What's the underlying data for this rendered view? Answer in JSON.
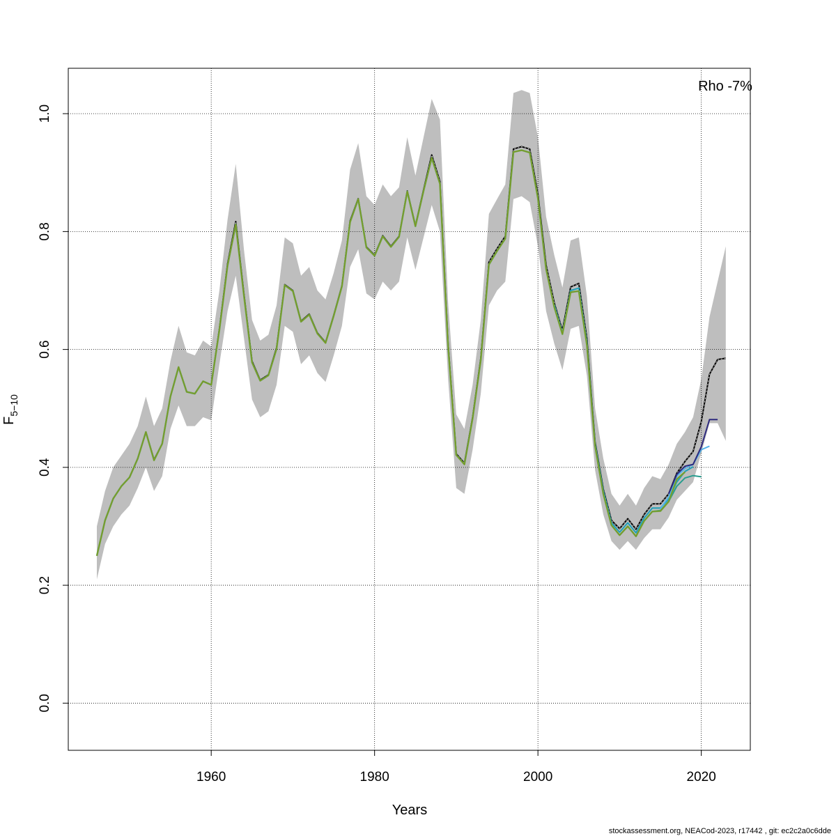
{
  "chart_data": {
    "type": "line",
    "xlabel": "Years",
    "ylabel_main": "F",
    "ylabel_sub": "5−10",
    "xlim": [
      1942.5,
      2026
    ],
    "ylim": [
      -0.08,
      1.077
    ],
    "x_ticks": [
      1960,
      1980,
      2000,
      2020
    ],
    "x_tick_labels": [
      "1960",
      "1980",
      "2000",
      "2020"
    ],
    "y_ticks": [
      0.0,
      0.2,
      0.4,
      0.6,
      0.8,
      1.0
    ],
    "y_tick_labels": [
      "0.0",
      "0.2",
      "0.4",
      "0.6",
      "0.8",
      "1.0"
    ],
    "grid": true,
    "annotation": "Rho -7%",
    "footer": "stockassessment.org, NEACod-2023, r17442 , git: ec2c2a0c6dde",
    "colors": {
      "band": "#bebebe",
      "main": "#000000",
      "peel_green": "#6aa84f",
      "peel_olive": "#8b8b00",
      "peel_teal": "#2a9d8f",
      "peel_lightblue": "#56b4e9",
      "peel_navy": "#2e2a7e",
      "peel_cyan": "#1fa0b8"
    },
    "band": {
      "x": [
        1946,
        1947,
        1948,
        1949,
        1950,
        1951,
        1952,
        1953,
        1954,
        1955,
        1956,
        1957,
        1958,
        1959,
        1960,
        1961,
        1962,
        1963,
        1964,
        1965,
        1966,
        1967,
        1968,
        1969,
        1970,
        1971,
        1972,
        1973,
        1974,
        1975,
        1976,
        1977,
        1978,
        1979,
        1980,
        1981,
        1982,
        1983,
        1984,
        1985,
        1986,
        1987,
        1988,
        1989,
        1990,
        1991,
        1992,
        1993,
        1994,
        1995,
        1996,
        1997,
        1998,
        1999,
        2000,
        2001,
        2002,
        2003,
        2004,
        2005,
        2006,
        2007,
        2008,
        2009,
        2010,
        2011,
        2012,
        2013,
        2014,
        2015,
        2016,
        2017,
        2018,
        2019,
        2020,
        2021,
        2022,
        2023
      ],
      "upper": [
        0.3,
        0.36,
        0.4,
        0.42,
        0.44,
        0.47,
        0.52,
        0.47,
        0.5,
        0.58,
        0.64,
        0.595,
        0.59,
        0.615,
        0.605,
        0.7,
        0.82,
        0.915,
        0.77,
        0.65,
        0.615,
        0.625,
        0.675,
        0.79,
        0.78,
        0.725,
        0.74,
        0.7,
        0.685,
        0.73,
        0.785,
        0.905,
        0.95,
        0.86,
        0.845,
        0.88,
        0.86,
        0.875,
        0.96,
        0.895,
        0.96,
        1.025,
        0.99,
        0.68,
        0.49,
        0.465,
        0.54,
        0.65,
        0.83,
        0.855,
        0.88,
        1.035,
        1.04,
        1.035,
        0.96,
        0.825,
        0.76,
        0.705,
        0.785,
        0.79,
        0.69,
        0.5,
        0.415,
        0.355,
        0.335,
        0.355,
        0.335,
        0.365,
        0.385,
        0.38,
        0.405,
        0.44,
        0.46,
        0.485,
        0.55,
        0.655,
        0.715,
        0.775
      ],
      "lower": [
        0.21,
        0.27,
        0.3,
        0.32,
        0.335,
        0.365,
        0.4,
        0.36,
        0.385,
        0.465,
        0.505,
        0.47,
        0.47,
        0.485,
        0.48,
        0.575,
        0.665,
        0.725,
        0.62,
        0.515,
        0.485,
        0.495,
        0.54,
        0.64,
        0.63,
        0.575,
        0.59,
        0.56,
        0.545,
        0.59,
        0.64,
        0.74,
        0.77,
        0.695,
        0.685,
        0.715,
        0.7,
        0.715,
        0.79,
        0.735,
        0.79,
        0.845,
        0.8,
        0.55,
        0.365,
        0.355,
        0.43,
        0.525,
        0.675,
        0.7,
        0.715,
        0.855,
        0.86,
        0.85,
        0.775,
        0.665,
        0.61,
        0.565,
        0.635,
        0.64,
        0.555,
        0.395,
        0.32,
        0.275,
        0.26,
        0.275,
        0.26,
        0.28,
        0.295,
        0.295,
        0.315,
        0.345,
        0.36,
        0.375,
        0.425,
        0.475,
        0.475,
        0.445
      ]
    },
    "series": [
      {
        "color": "#000000",
        "dashed": true,
        "width": 2,
        "x": [
          1946,
          1947,
          1948,
          1949,
          1950,
          1951,
          1952,
          1953,
          1954,
          1955,
          1956,
          1957,
          1958,
          1959,
          1960,
          1961,
          1962,
          1963,
          1964,
          1965,
          1966,
          1967,
          1968,
          1969,
          1970,
          1971,
          1972,
          1973,
          1974,
          1975,
          1976,
          1977,
          1978,
          1979,
          1980,
          1981,
          1982,
          1983,
          1984,
          1985,
          1986,
          1987,
          1988,
          1989,
          1990,
          1991,
          1992,
          1993,
          1994,
          1995,
          1996,
          1997,
          1998,
          1999,
          2000,
          2001,
          2002,
          2003,
          2004,
          2005,
          2006,
          2007,
          2008,
          2009,
          2010,
          2011,
          2012,
          2013,
          2014,
          2015,
          2016,
          2017,
          2018,
          2019,
          2020,
          2021,
          2022,
          2023
        ],
        "y": [
          0.25,
          0.31,
          0.347,
          0.368,
          0.383,
          0.415,
          0.46,
          0.413,
          0.44,
          0.52,
          0.57,
          0.528,
          0.525,
          0.546,
          0.54,
          0.635,
          0.745,
          0.817,
          0.695,
          0.58,
          0.548,
          0.557,
          0.603,
          0.71,
          0.7,
          0.648,
          0.66,
          0.628,
          0.612,
          0.658,
          0.708,
          0.818,
          0.856,
          0.774,
          0.76,
          0.793,
          0.775,
          0.792,
          0.869,
          0.81,
          0.871,
          0.93,
          0.885,
          0.61,
          0.423,
          0.407,
          0.485,
          0.585,
          0.748,
          0.771,
          0.792,
          0.94,
          0.944,
          0.94,
          0.863,
          0.743,
          0.679,
          0.632,
          0.706,
          0.712,
          0.618,
          0.443,
          0.363,
          0.31,
          0.296,
          0.313,
          0.295,
          0.32,
          0.338,
          0.338,
          0.355,
          0.39,
          0.41,
          0.427,
          0.478,
          0.558,
          0.583,
          0.585
        ]
      },
      {
        "color": "#1fa0b8",
        "dashed": false,
        "width": 2,
        "x": [
          2002,
          2003,
          2004,
          2005,
          2006,
          2007,
          2008,
          2009,
          2010,
          2011,
          2012,
          2013,
          2014,
          2015,
          2016,
          2017,
          2018,
          2019
        ],
        "y": [
          0.676,
          0.628,
          0.7,
          0.704,
          0.612,
          0.44,
          0.36,
          0.306,
          0.29,
          0.306,
          0.289,
          0.314,
          0.331,
          0.331,
          0.346,
          0.375,
          0.393,
          0.401
        ]
      },
      {
        "color": "#2a9d8f",
        "dashed": false,
        "width": 2,
        "x": [
          2014,
          2015,
          2016,
          2017,
          2018,
          2019,
          2020
        ],
        "y": [
          0.325,
          0.327,
          0.342,
          0.368,
          0.382,
          0.386,
          0.384
        ]
      },
      {
        "color": "#56b4e9",
        "dashed": false,
        "width": 2,
        "x": [
          2015,
          2016,
          2017,
          2018,
          2019,
          2020,
          2021
        ],
        "y": [
          0.33,
          0.35,
          0.385,
          0.398,
          0.405,
          0.43,
          0.436
        ]
      },
      {
        "color": "#2e2a7e",
        "dashed": false,
        "width": 2,
        "x": [
          2016,
          2017,
          2018,
          2019,
          2020,
          2021,
          2022
        ],
        "y": [
          0.355,
          0.388,
          0.402,
          0.405,
          0.435,
          0.481,
          0.481
        ]
      },
      {
        "color": "#6aa84f",
        "dashed": false,
        "width": 2.5,
        "x": [
          1946,
          1947,
          1948,
          1949,
          1950,
          1951,
          1952,
          1953,
          1954,
          1955,
          1956,
          1957,
          1958,
          1959,
          1960,
          1961,
          1962,
          1963,
          1964,
          1965,
          1966,
          1967,
          1968,
          1969,
          1970,
          1971,
          1972,
          1973,
          1974,
          1975,
          1976,
          1977,
          1978,
          1979,
          1980,
          1981,
          1982,
          1983,
          1984,
          1985,
          1986,
          1987,
          1988,
          1989,
          1990,
          1991,
          1992,
          1993,
          1994,
          1995,
          1996,
          1997,
          1998,
          1999,
          2000,
          2001,
          2002,
          2003,
          2004,
          2005,
          2006,
          2007,
          2008,
          2009,
          2010,
          2011,
          2012,
          2013,
          2014,
          2015,
          2016,
          2017,
          2018
        ],
        "y": [
          0.25,
          0.31,
          0.347,
          0.368,
          0.383,
          0.415,
          0.46,
          0.412,
          0.44,
          0.52,
          0.57,
          0.528,
          0.525,
          0.546,
          0.54,
          0.633,
          0.742,
          0.812,
          0.692,
          0.578,
          0.547,
          0.556,
          0.601,
          0.709,
          0.699,
          0.647,
          0.659,
          0.627,
          0.611,
          0.657,
          0.707,
          0.816,
          0.855,
          0.773,
          0.759,
          0.792,
          0.774,
          0.791,
          0.868,
          0.809,
          0.869,
          0.925,
          0.881,
          0.606,
          0.421,
          0.405,
          0.483,
          0.582,
          0.744,
          0.767,
          0.788,
          0.935,
          0.938,
          0.934,
          0.856,
          0.736,
          0.672,
          0.626,
          0.697,
          0.699,
          0.607,
          0.436,
          0.355,
          0.302,
          0.285,
          0.3,
          0.283,
          0.309,
          0.325,
          0.326,
          0.342,
          0.38,
          0.392
        ]
      }
    ]
  }
}
